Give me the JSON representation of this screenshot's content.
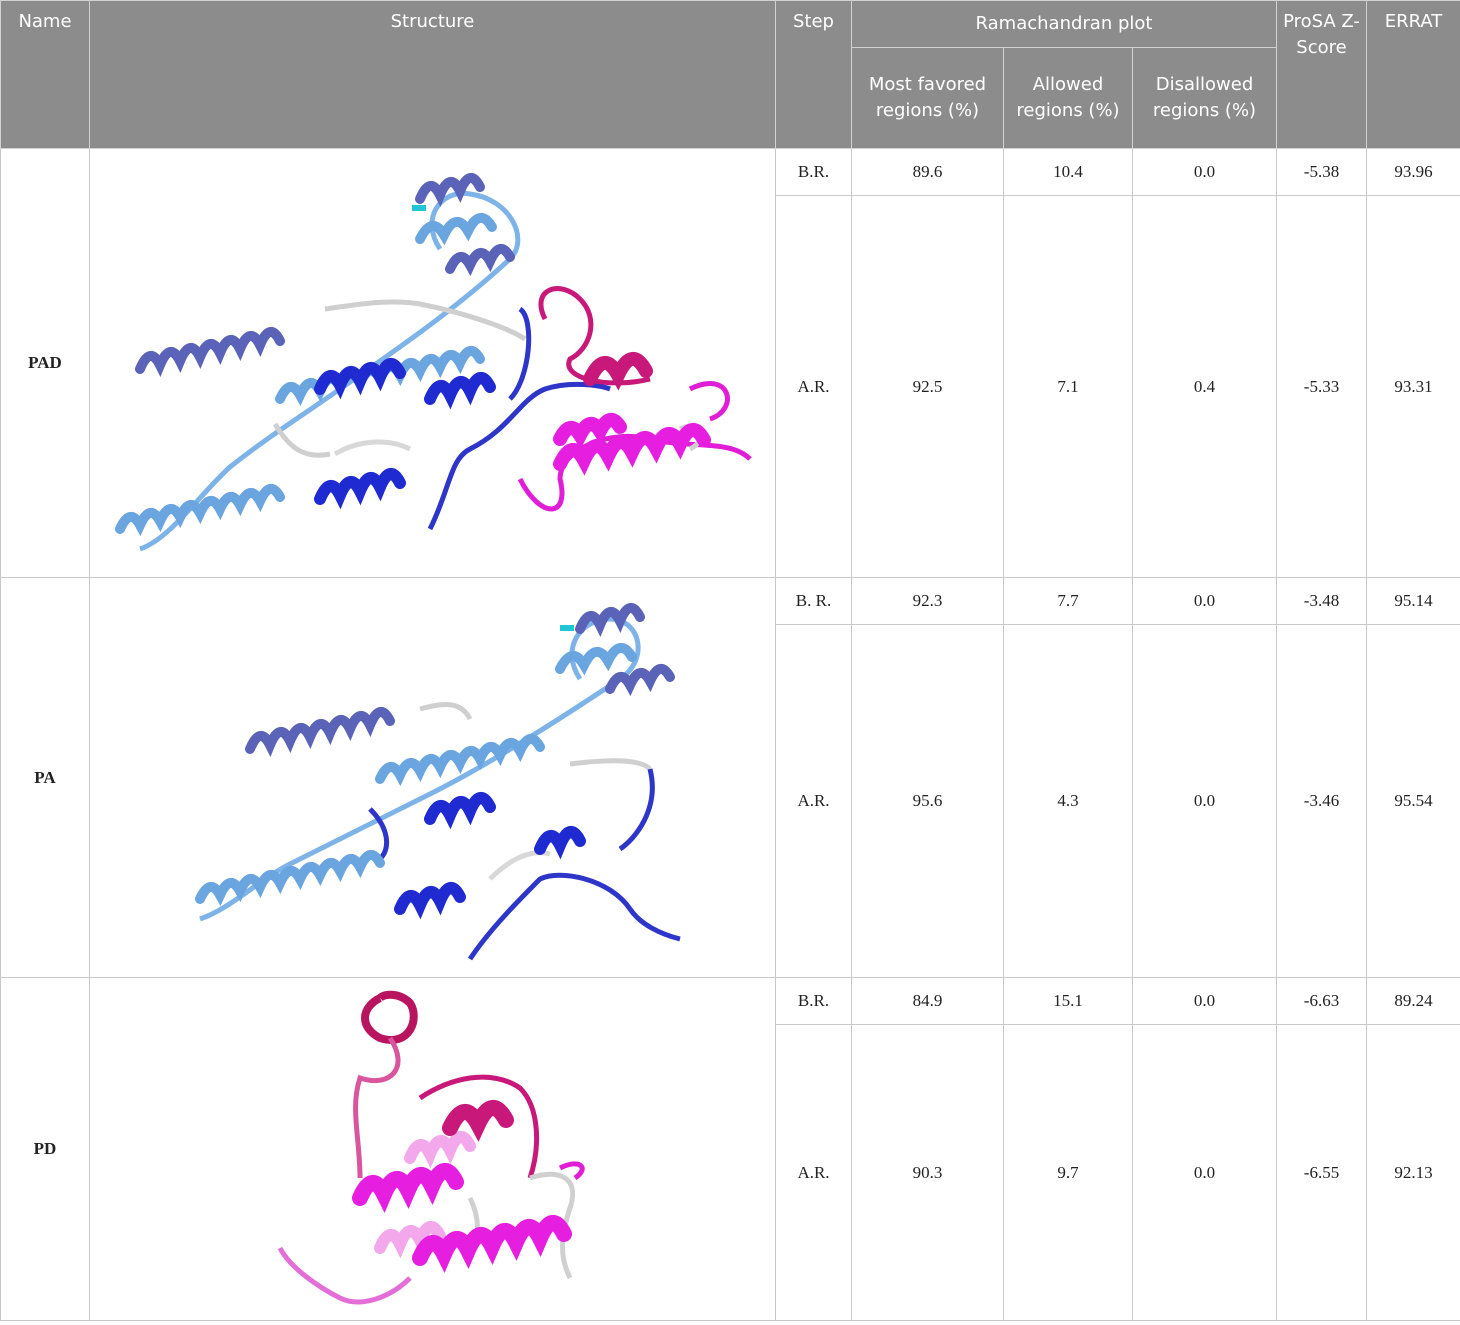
{
  "header": {
    "name": "Name",
    "structure": "Structure",
    "step": "Step",
    "ramachandran": "Ramachandran plot",
    "most_favored": "Most favored regions (%)",
    "allowed": "Allowed regions (%)",
    "disallowed": "Disallowed regions (%)",
    "prosa": "ProSA Z-Score",
    "errat": "ERRAT"
  },
  "rows": [
    {
      "name": "PAD",
      "structure_icon": "protein-ribbon-pad",
      "steps": [
        {
          "step": "B.R.",
          "most_favored": "89.6",
          "allowed": "10.4",
          "disallowed": "0.0",
          "prosa": "-5.38",
          "errat": "93.96"
        },
        {
          "step": "A.R.",
          "most_favored": "92.5",
          "allowed": "7.1",
          "disallowed": "0.4",
          "prosa": "-5.33",
          "errat": "93.31"
        }
      ]
    },
    {
      "name": "PA",
      "structure_icon": "protein-ribbon-pa",
      "steps": [
        {
          "step": "B. R.",
          "most_favored": "92.3",
          "allowed": "7.7",
          "disallowed": "0.0",
          "prosa": "-3.48",
          "errat": "95.14"
        },
        {
          "step": "A.R.",
          "most_favored": "95.6",
          "allowed": "4.3",
          "disallowed": "0.0",
          "prosa": "-3.46",
          "errat": "95.54"
        }
      ]
    },
    {
      "name": "PD",
      "structure_icon": "protein-ribbon-pd",
      "steps": [
        {
          "step": "B.R.",
          "most_favored": "84.9",
          "allowed": "15.1",
          "disallowed": "0.0",
          "prosa": "-6.63",
          "errat": "89.24"
        },
        {
          "step": "A.R.",
          "most_favored": "90.3",
          "allowed": "9.7",
          "disallowed": "0.0",
          "prosa": "-6.55",
          "errat": "92.13"
        }
      ]
    }
  ],
  "colors": {
    "header_bg": "#8c8c8c",
    "helix_light": "#6aa5e0",
    "helix_slate": "#5b63b8",
    "helix_blue": "#1f2bd0",
    "helix_magenta": "#e61ee0",
    "helix_crimson": "#c8187a",
    "coil_grey": "#d0d0d0"
  }
}
